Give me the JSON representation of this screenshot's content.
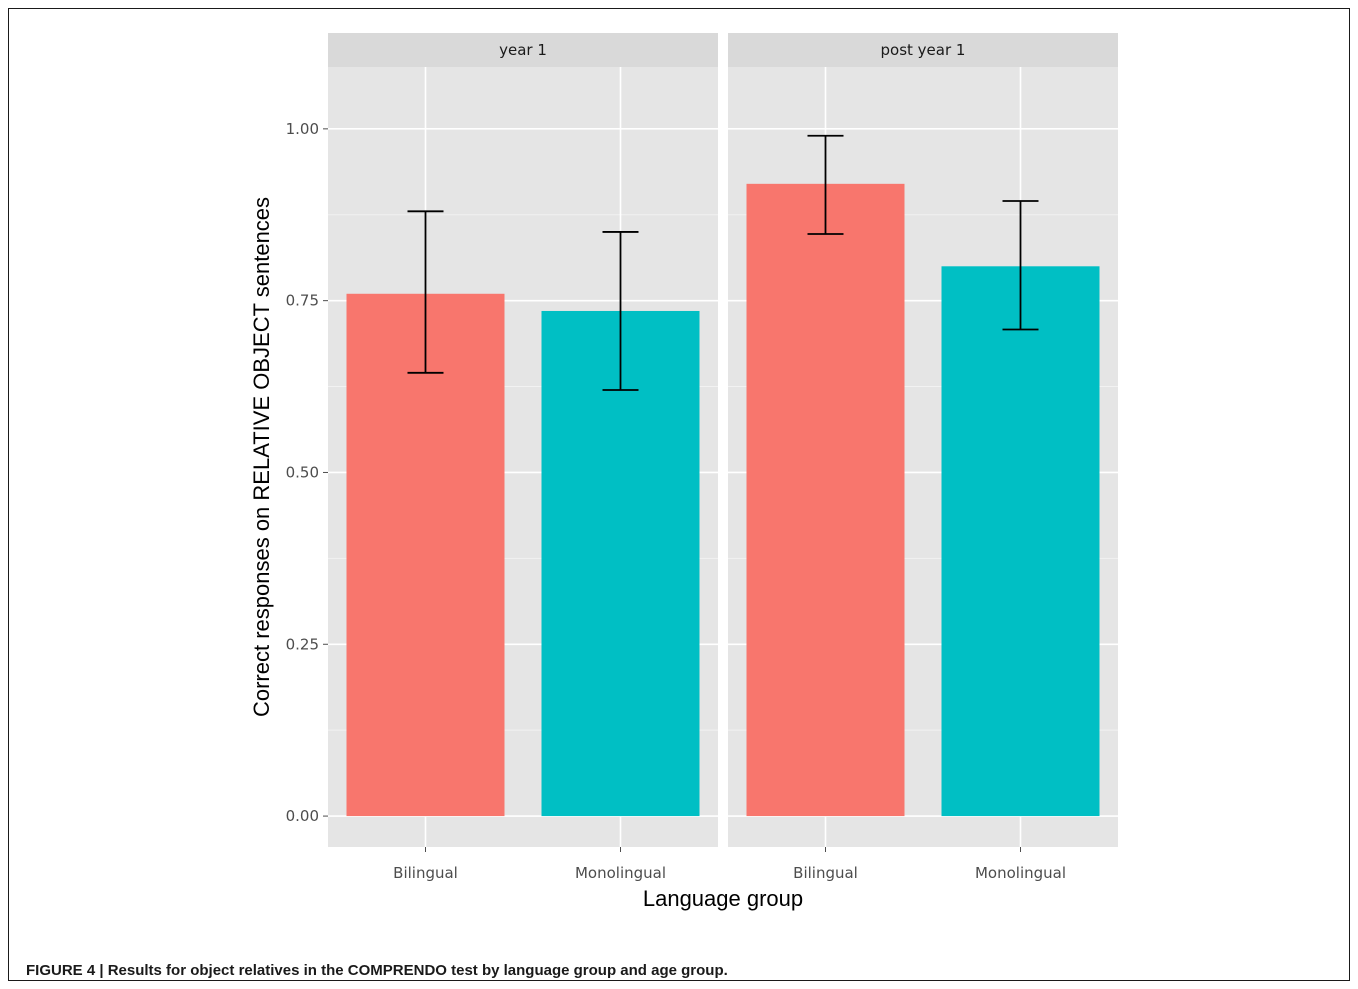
{
  "chart_data": {
    "type": "bar",
    "facets": [
      "year 1",
      "post year 1"
    ],
    "categories": [
      "Bilingual",
      "Monolingual"
    ],
    "colors": {
      "Bilingual": "#f8766d",
      "Monolingual": "#00bfc4",
      "panel": "#e5e5e5",
      "strip": "#d9d9d9"
    },
    "values": [
      {
        "facet": "year 1",
        "group": "Bilingual",
        "value": 0.76,
        "lower": 0.645,
        "upper": 0.88
      },
      {
        "facet": "year 1",
        "group": "Monolingual",
        "value": 0.735,
        "lower": 0.62,
        "upper": 0.85
      },
      {
        "facet": "post year 1",
        "group": "Bilingual",
        "value": 0.92,
        "lower": 0.847,
        "upper": 0.99
      },
      {
        "facet": "post year 1",
        "group": "Monolingual",
        "value": 0.8,
        "lower": 0.708,
        "upper": 0.895
      }
    ],
    "yticks": [
      "0.00",
      "0.25",
      "0.50",
      "0.75",
      "1.00"
    ],
    "ylim": [
      -0.045,
      1.09
    ],
    "xlabel": "Language group",
    "ylabel": "Correct responses on RELATIVE OBJECT sentences",
    "grid": true,
    "legend": "none"
  },
  "caption": "FIGURE 4 | Results for object relatives in the COMPRENDO test by language group and age group."
}
